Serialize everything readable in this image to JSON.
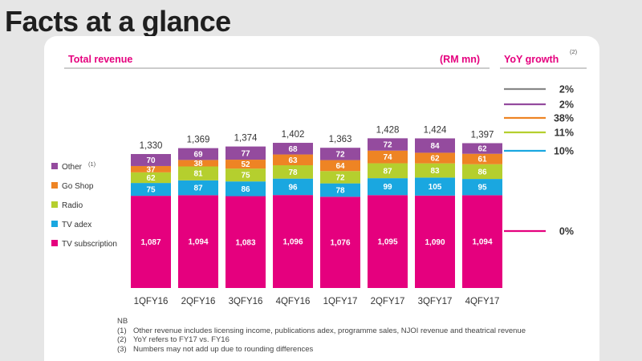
{
  "page_title": "Facts at a glance",
  "chart_data": {
    "type": "bar",
    "stacked": true,
    "title": "Total revenue",
    "unit_label": "(RM mn)",
    "categories": [
      "1QFY16",
      "2QFY16",
      "3QFY16",
      "4QFY16",
      "1QFY17",
      "2QFY17",
      "3QFY17",
      "4QFY17"
    ],
    "totals": [
      1330,
      1369,
      1374,
      1402,
      1363,
      1428,
      1424,
      1397
    ],
    "total_labels": [
      "1,330",
      "1,369",
      "1,374",
      "1,402",
      "1,363",
      "1,428",
      "1,424",
      "1,397"
    ],
    "series": [
      {
        "name": "TV subscription",
        "color": "#e5007e",
        "values": [
          1087,
          1094,
          1083,
          1096,
          1076,
          1095,
          1090,
          1094
        ],
        "labels": [
          "1,087",
          "1,094",
          "1,083",
          "1,096",
          "1,076",
          "1,095",
          "1,090",
          "1,094"
        ]
      },
      {
        "name": "TV adex",
        "color": "#1aa7e0",
        "values": [
          75,
          87,
          86,
          96,
          78,
          99,
          105,
          95
        ],
        "labels": [
          "75",
          "87",
          "86",
          "96",
          "78",
          "99",
          "105",
          "95"
        ]
      },
      {
        "name": "Radio",
        "color": "#b5cf2e",
        "values": [
          62,
          81,
          75,
          78,
          72,
          87,
          83,
          86
        ],
        "labels": [
          "62",
          "81",
          "75",
          "78",
          "72",
          "87",
          "83",
          "86"
        ]
      },
      {
        "name": "Go Shop",
        "color": "#ee8424",
        "values": [
          37,
          38,
          52,
          63,
          64,
          74,
          62,
          61
        ],
        "labels": [
          "37",
          "38",
          "52",
          "63",
          "64",
          "74",
          "62",
          "61"
        ]
      },
      {
        "name": "Other",
        "color": "#944b9e",
        "values": [
          70,
          69,
          77,
          68,
          72,
          72,
          84,
          62
        ],
        "labels": [
          "70",
          "69",
          "77",
          "68",
          "72",
          "72",
          "84",
          "62"
        ]
      }
    ],
    "legend_note_marker": "(1)",
    "yoy": {
      "header": "YoY growth",
      "header_note": "(2)",
      "rows": [
        {
          "label": "2%",
          "color": "#888888"
        },
        {
          "label": "2%",
          "color": "#944b9e"
        },
        {
          "label": "38%",
          "color": "#ee8424"
        },
        {
          "label": "11%",
          "color": "#b5cf2e"
        },
        {
          "label": "10%",
          "color": "#1aa7e0"
        },
        {
          "label": "0%",
          "color": "#e5007e"
        }
      ]
    },
    "legend_placement": "left",
    "grid": false
  },
  "notes": {
    "heading": "NB",
    "items": [
      {
        "num": "(1)",
        "text": "Other revenue includes licensing income, publications adex, programme sales, NJOI revenue and theatrical revenue"
      },
      {
        "num": "(2)",
        "text": "YoY refers to FY17 vs. FY16"
      },
      {
        "num": "(3)",
        "text": "Numbers may not add up due to rounding differences"
      }
    ]
  }
}
